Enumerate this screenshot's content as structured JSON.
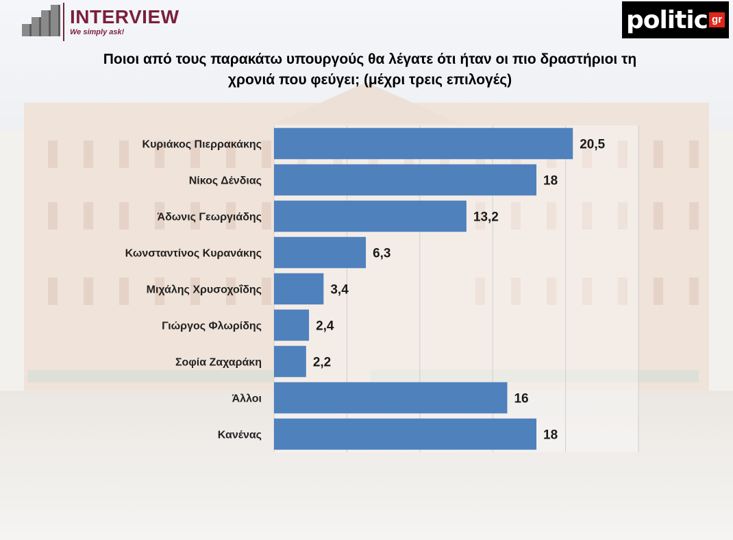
{
  "header": {
    "left_logo": {
      "brand": "INTERVIEW",
      "tagline": "We simply ask!"
    },
    "right_logo": {
      "name": "politic",
      "suffix": "gr"
    }
  },
  "chart_data": {
    "type": "bar",
    "orientation": "horizontal",
    "title": "Ποιοι από τους παρακάτω υπουργούς θα λέγατε ότι  ήταν οι πιο δραστήριοι τη χρονιά που φεύγει; (μέχρι τρεις επιλογές)",
    "categories": [
      "Κυριάκος Πιερρακάκης",
      "Νίκος Δένδιας",
      "Άδωνις Γεωργιάδης",
      "Κωνσταντίνος Κυρανάκης",
      "Μιχάλης Χρυσοχοΐδης",
      "Γιώργος Φλωρίδης",
      "Σοφία Ζαχαράκη",
      "Άλλοι",
      "Κανένας"
    ],
    "values": [
      20.5,
      18,
      13.2,
      6.3,
      3.4,
      2.4,
      2.2,
      16,
      18
    ],
    "value_labels": [
      "20,5",
      "18",
      "13,2",
      "6,3",
      "3,4",
      "2,4",
      "2,2",
      "16",
      "18"
    ],
    "xlim": [
      0,
      25
    ],
    "grid": true,
    "bar_color": "#4f81bd"
  }
}
